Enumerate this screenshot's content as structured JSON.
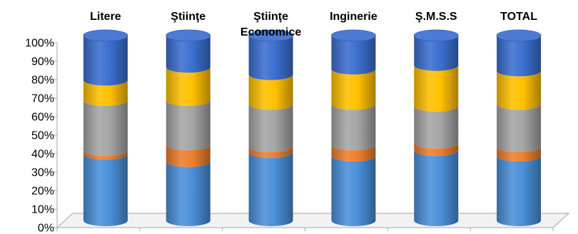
{
  "chart_data": {
    "type": "bar",
    "stacked": true,
    "percent": true,
    "style": "3d-cylinder",
    "categories": [
      "Litere",
      "Ştiinţe",
      "Ştiinţe Economice",
      "Inginerie",
      "Ş.M.S.S",
      "TOTAL"
    ],
    "category_labels": [
      [
        "Litere"
      ],
      [
        "Ştiinţe"
      ],
      [
        "Ştiinţe",
        "Economice"
      ],
      [
        "Inginerie"
      ],
      [
        "Ş.M.S.S"
      ],
      [
        "TOTAL"
      ]
    ],
    "series": [
      {
        "color": "#4a90d9",
        "values": [
          36,
          32,
          37,
          35,
          38,
          35
        ]
      },
      {
        "color": "#ee7e2d",
        "values": [
          2,
          9,
          3,
          6,
          4,
          5
        ]
      },
      {
        "color": "#a5a5a5",
        "values": [
          27,
          24,
          23,
          22,
          20,
          23
        ]
      },
      {
        "color": "#ffc000",
        "values": [
          11,
          18,
          16,
          19,
          22,
          18
        ]
      },
      {
        "color": "#3b6fd0",
        "values": [
          24,
          17,
          21,
          18,
          16,
          19
        ]
      }
    ],
    "y_ticks": [
      "0%",
      "10%",
      "20%",
      "30%",
      "40%",
      "50%",
      "60%",
      "70%",
      "80%",
      "90%",
      "100%"
    ],
    "ylim": [
      0,
      100
    ],
    "legend": "none",
    "grid": false
  }
}
